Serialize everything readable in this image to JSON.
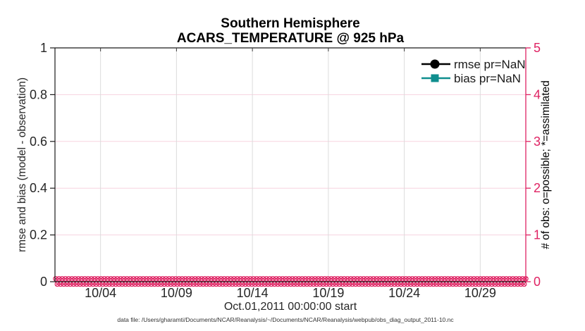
{
  "title": {
    "line1": "Southern Hemisphere",
    "line2": "ACARS_TEMPERATURE @ 925 hPa"
  },
  "axes": {
    "left": {
      "label": "rmse and bias (model - observation)",
      "ticks": [
        0,
        0.2,
        0.4,
        0.6,
        0.8,
        1
      ],
      "tick_labels": [
        "0",
        "0.2",
        "0.4",
        "0.6",
        "0.8",
        "1"
      ],
      "range": [
        0,
        1
      ],
      "color": "#262626"
    },
    "right": {
      "label": "# of obs: o=possible; *=assimilated",
      "ticks": [
        0,
        1,
        2,
        3,
        4,
        5
      ],
      "tick_labels": [
        "0",
        "1",
        "2",
        "3",
        "4",
        "5"
      ],
      "range": [
        0,
        5
      ],
      "color": "#df2363"
    },
    "x": {
      "label": "Oct.01,2011 00:00:00 start",
      "tick_labels": [
        "10/04",
        "10/09",
        "10/14",
        "10/19",
        "10/24",
        "10/29"
      ],
      "tick_days": [
        4,
        9,
        14,
        19,
        24,
        29
      ],
      "range_days": [
        1,
        32
      ]
    }
  },
  "legend": {
    "items": [
      {
        "label": "rmse pr=NaN",
        "color": "#000000",
        "marker": "circle"
      },
      {
        "label": "bias pr=NaN",
        "color": "#0f8e8e",
        "marker": "square"
      }
    ]
  },
  "caption": "data file: /Users/gharamti/Documents/NCAR/Reanalysis/~/Documents/NCAR/Reanalysis/webpub/obs_diag_output_2011-10.nc",
  "colors": {
    "accent_pink": "#df2363",
    "grid_pink": "#f7d3df",
    "grid_gray": "#dcdcdc",
    "teal": "#0f8e8e",
    "dark": "#262626"
  },
  "chart_data": {
    "type": "line",
    "title": "Southern Hemisphere",
    "subtitle": "ACARS_TEMPERATURE @ 925 hPa",
    "xlabel": "Oct.01,2011 00:00:00 start",
    "x_tick_labels": [
      "10/04",
      "10/09",
      "10/14",
      "10/19",
      "10/24",
      "10/29"
    ],
    "x_range": "Oct 1 2011 00:00 through Oct 31 2011 (full month shown)",
    "y_left": {
      "label": "rmse and bias (model - observation)",
      "range": [
        0,
        1
      ],
      "ticks": [
        0,
        0.2,
        0.4,
        0.6,
        0.8,
        1
      ]
    },
    "y_right": {
      "label": "# of obs: o=possible; *=assimilated",
      "range": [
        0,
        5
      ],
      "ticks": [
        0,
        1,
        2,
        3,
        4,
        5
      ]
    },
    "series": [
      {
        "name": "rmse pr=NaN",
        "axis": "left",
        "marker": "filled-circle",
        "color": "#000000",
        "values": "all NaN - no curve plotted"
      },
      {
        "name": "bias pr=NaN",
        "axis": "left",
        "marker": "filled-square",
        "color": "#0f8e8e",
        "values": "all NaN - no curve plotted"
      },
      {
        "name": "# of obs possible (o markers)",
        "axis": "right",
        "marker": "o",
        "color": "#df2363",
        "constant_value": 0,
        "note": "dense row of o markers at y=0 across entire x range"
      },
      {
        "name": "# of obs assimilated (* markers)",
        "axis": "right",
        "marker": "*",
        "color": "#df2363",
        "constant_value": 0,
        "note": "dense row of * markers at y=0 across entire x range"
      }
    ],
    "grid": true,
    "legend_position": "top-right inside axes, no box"
  }
}
